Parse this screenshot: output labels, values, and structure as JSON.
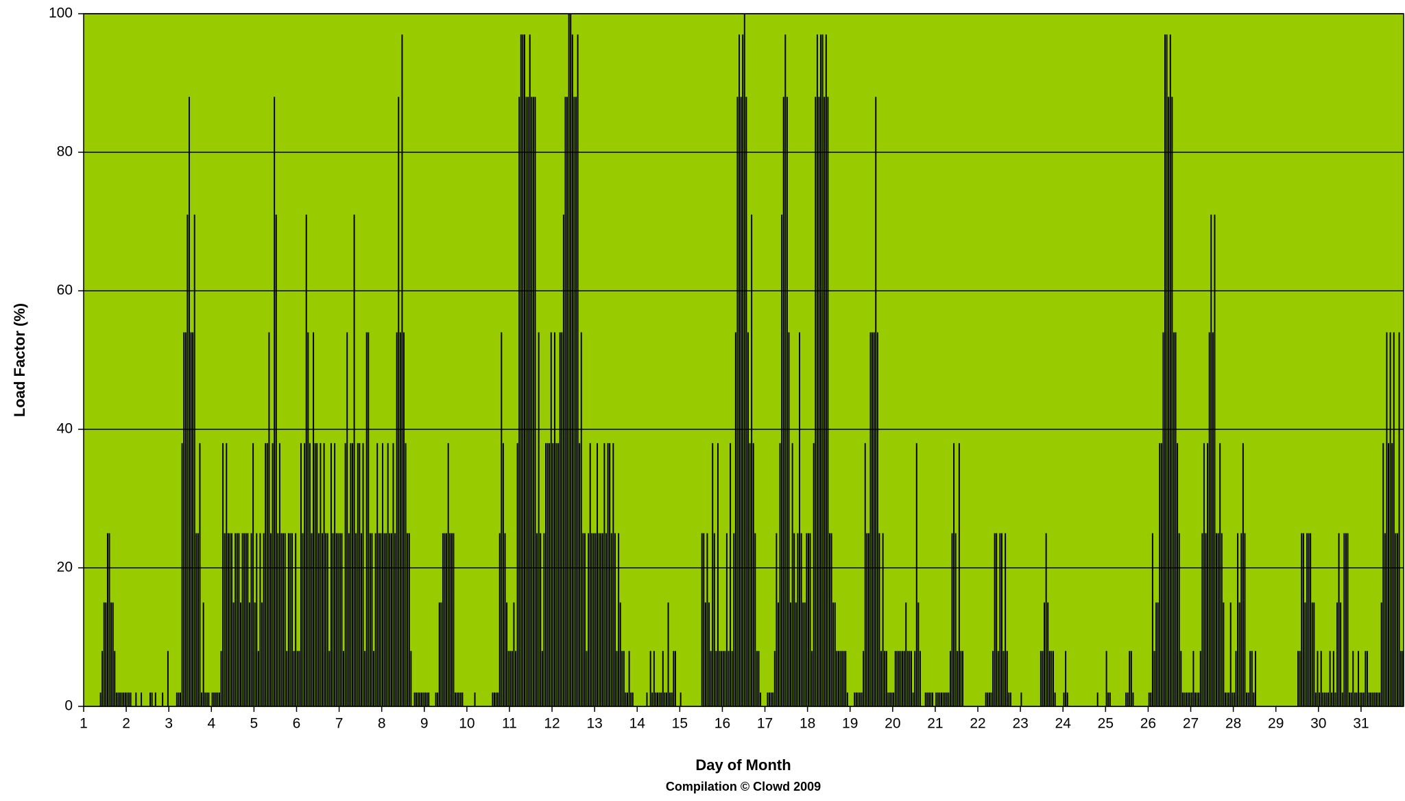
{
  "chart_data": {
    "type": "bar",
    "x_label": "Day of Month",
    "y_label": "Load Factor (%)",
    "credit": "Compilation © Clowd 2009",
    "color": "#000000",
    "background": "#99cc00",
    "grid": true,
    "ylim": [
      0,
      100
    ],
    "yticks": [
      0,
      20,
      40,
      60,
      80,
      100
    ],
    "categories": [
      "1",
      "2",
      "3",
      "4",
      "5",
      "6",
      "7",
      "8",
      "9",
      "10",
      "11",
      "12",
      "13",
      "14",
      "15",
      "16",
      "17",
      "18",
      "19",
      "20",
      "21",
      "22",
      "23",
      "24",
      "25",
      "26",
      "27",
      "28",
      "29",
      "30",
      "31"
    ],
    "values": [
      [
        0,
        0,
        0,
        0,
        0,
        0,
        0,
        0,
        0,
        2,
        8,
        15,
        15,
        25,
        25,
        15,
        15,
        8,
        2,
        2,
        2,
        2,
        2,
        2
      ],
      [
        2,
        2,
        2,
        0,
        0,
        2,
        0,
        0,
        2,
        0,
        0,
        0,
        0,
        2,
        2,
        0,
        2,
        0,
        0,
        0,
        2,
        0,
        0,
        8
      ],
      [
        0,
        0,
        0,
        0,
        2,
        2,
        2,
        38,
        54,
        54,
        71,
        88,
        54,
        54,
        71,
        25,
        25,
        38,
        2,
        15,
        2,
        2,
        2,
        0
      ],
      [
        2,
        2,
        2,
        2,
        2,
        8,
        38,
        25,
        38,
        25,
        25,
        25,
        15,
        25,
        25,
        25,
        15,
        25,
        25,
        25,
        25,
        15,
        25,
        38
      ],
      [
        15,
        25,
        8,
        25,
        15,
        25,
        38,
        38,
        54,
        25,
        38,
        88,
        71,
        25,
        38,
        25,
        25,
        25,
        8,
        25,
        25,
        25,
        8,
        25
      ],
      [
        8,
        8,
        38,
        25,
        38,
        71,
        54,
        38,
        25,
        54,
        38,
        38,
        25,
        38,
        25,
        38,
        25,
        25,
        8,
        38,
        25,
        38,
        25,
        25
      ],
      [
        25,
        25,
        8,
        38,
        54,
        25,
        38,
        38,
        71,
        25,
        38,
        38,
        25,
        38,
        8,
        54,
        54,
        25,
        25,
        8,
        25,
        38,
        25,
        25
      ],
      [
        38,
        25,
        25,
        38,
        25,
        25,
        38,
        25,
        54,
        88,
        54,
        97,
        54,
        38,
        25,
        25,
        8,
        0,
        2,
        2,
        2,
        2,
        2,
        2
      ],
      [
        2,
        2,
        2,
        0,
        0,
        0,
        2,
        2,
        15,
        15,
        25,
        25,
        25,
        38,
        25,
        25,
        25,
        2,
        2,
        2,
        2,
        2,
        0,
        0
      ],
      [
        0,
        0,
        0,
        0,
        2,
        0,
        0,
        0,
        0,
        0,
        0,
        0,
        0,
        0,
        2,
        2,
        2,
        2,
        25,
        54,
        38,
        25,
        15,
        8
      ],
      [
        8,
        8,
        15,
        8,
        38,
        88,
        97,
        97,
        97,
        88,
        88,
        97,
        88,
        88,
        88,
        25,
        54,
        25,
        8,
        25,
        38,
        38,
        38,
        54
      ],
      [
        38,
        54,
        38,
        38,
        54,
        54,
        71,
        88,
        88,
        100,
        100,
        97,
        88,
        88,
        97,
        38,
        54,
        25,
        25,
        8,
        25,
        38,
        25,
        25
      ],
      [
        25,
        38,
        25,
        25,
        25,
        38,
        25,
        38,
        38,
        25,
        38,
        25,
        8,
        25,
        15,
        8,
        8,
        2,
        2,
        8,
        2,
        2,
        0,
        0
      ],
      [
        0,
        0,
        0,
        0,
        0,
        2,
        0,
        8,
        2,
        8,
        2,
        2,
        2,
        2,
        8,
        2,
        2,
        15,
        2,
        2,
        8,
        8,
        0,
        0
      ],
      [
        2,
        0,
        0,
        0,
        0,
        0,
        0,
        0,
        0,
        0,
        0,
        0,
        25,
        25,
        15,
        25,
        15,
        8,
        38,
        25,
        8,
        38,
        8,
        8
      ],
      [
        8,
        8,
        25,
        8,
        38,
        8,
        25,
        54,
        88,
        97,
        88,
        97,
        100,
        88,
        54,
        38,
        71,
        38,
        25,
        8,
        8,
        2,
        0,
        0
      ],
      [
        0,
        2,
        2,
        2,
        2,
        8,
        25,
        15,
        38,
        71,
        88,
        97,
        88,
        54,
        15,
        38,
        25,
        15,
        25,
        54,
        25,
        15,
        15,
        25
      ],
      [
        25,
        25,
        8,
        38,
        88,
        97,
        88,
        97,
        97,
        88,
        97,
        88,
        25,
        25,
        15,
        15,
        8,
        8,
        8,
        8,
        8,
        8,
        2,
        0
      ],
      [
        0,
        0,
        2,
        2,
        2,
        2,
        2,
        8,
        38,
        25,
        25,
        54,
        54,
        54,
        88,
        54,
        25,
        8,
        25,
        8,
        8,
        2,
        2,
        2
      ],
      [
        2,
        8,
        8,
        8,
        8,
        8,
        8,
        15,
        8,
        8,
        8,
        2,
        8,
        38,
        15,
        8,
        0,
        0,
        2,
        2,
        2,
        2,
        2,
        0
      ],
      [
        2,
        2,
        2,
        2,
        2,
        2,
        2,
        2,
        8,
        25,
        38,
        25,
        8,
        38,
        8,
        8,
        0,
        0,
        0,
        0,
        0,
        0,
        0,
        0
      ],
      [
        0,
        0,
        0,
        0,
        2,
        2,
        2,
        2,
        8,
        25,
        25,
        8,
        25,
        25,
        8,
        25,
        8,
        2,
        2,
        0,
        0,
        0,
        0,
        0
      ],
      [
        2,
        0,
        0,
        0,
        0,
        0,
        0,
        0,
        0,
        0,
        0,
        8,
        8,
        15,
        25,
        15,
        8,
        8,
        8,
        2,
        0,
        0,
        0,
        0
      ],
      [
        2,
        8,
        2,
        0,
        0,
        0,
        0,
        0,
        0,
        0,
        0,
        0,
        0,
        0,
        0,
        0,
        0,
        0,
        0,
        2,
        0,
        0,
        0,
        0
      ],
      [
        8,
        2,
        2,
        0,
        0,
        0,
        0,
        0,
        0,
        0,
        0,
        2,
        2,
        8,
        8,
        2,
        0,
        0,
        0,
        0,
        0,
        0,
        0,
        0
      ],
      [
        2,
        2,
        25,
        8,
        15,
        15,
        38,
        38,
        54,
        97,
        97,
        88,
        97,
        88,
        54,
        54,
        38,
        25,
        8,
        2,
        2,
        2,
        2,
        2
      ],
      [
        2,
        8,
        2,
        2,
        2,
        8,
        25,
        38,
        25,
        38,
        54,
        71,
        54,
        71,
        25,
        25,
        38,
        25,
        15,
        2,
        2,
        2,
        15,
        2
      ],
      [
        2,
        8,
        25,
        15,
        25,
        38,
        25,
        2,
        2,
        8,
        8,
        2,
        8,
        0,
        0,
        0,
        0,
        0,
        0,
        0,
        0,
        0,
        0,
        0
      ],
      [
        0,
        0,
        0,
        0,
        0,
        0,
        0,
        0,
        0,
        0,
        0,
        0,
        8,
        8,
        25,
        25,
        15,
        25,
        25,
        25,
        15,
        15,
        2,
        8
      ],
      [
        2,
        8,
        2,
        2,
        2,
        2,
        8,
        2,
        8,
        2,
        15,
        25,
        15,
        2,
        25,
        25,
        25,
        2,
        2,
        8,
        2,
        2,
        8,
        2
      ],
      [
        2,
        2,
        8,
        8,
        2,
        2,
        2,
        2,
        2,
        2,
        2,
        15,
        38,
        25,
        54,
        38,
        54,
        38,
        54,
        25,
        25,
        54,
        8,
        8
      ]
    ]
  }
}
